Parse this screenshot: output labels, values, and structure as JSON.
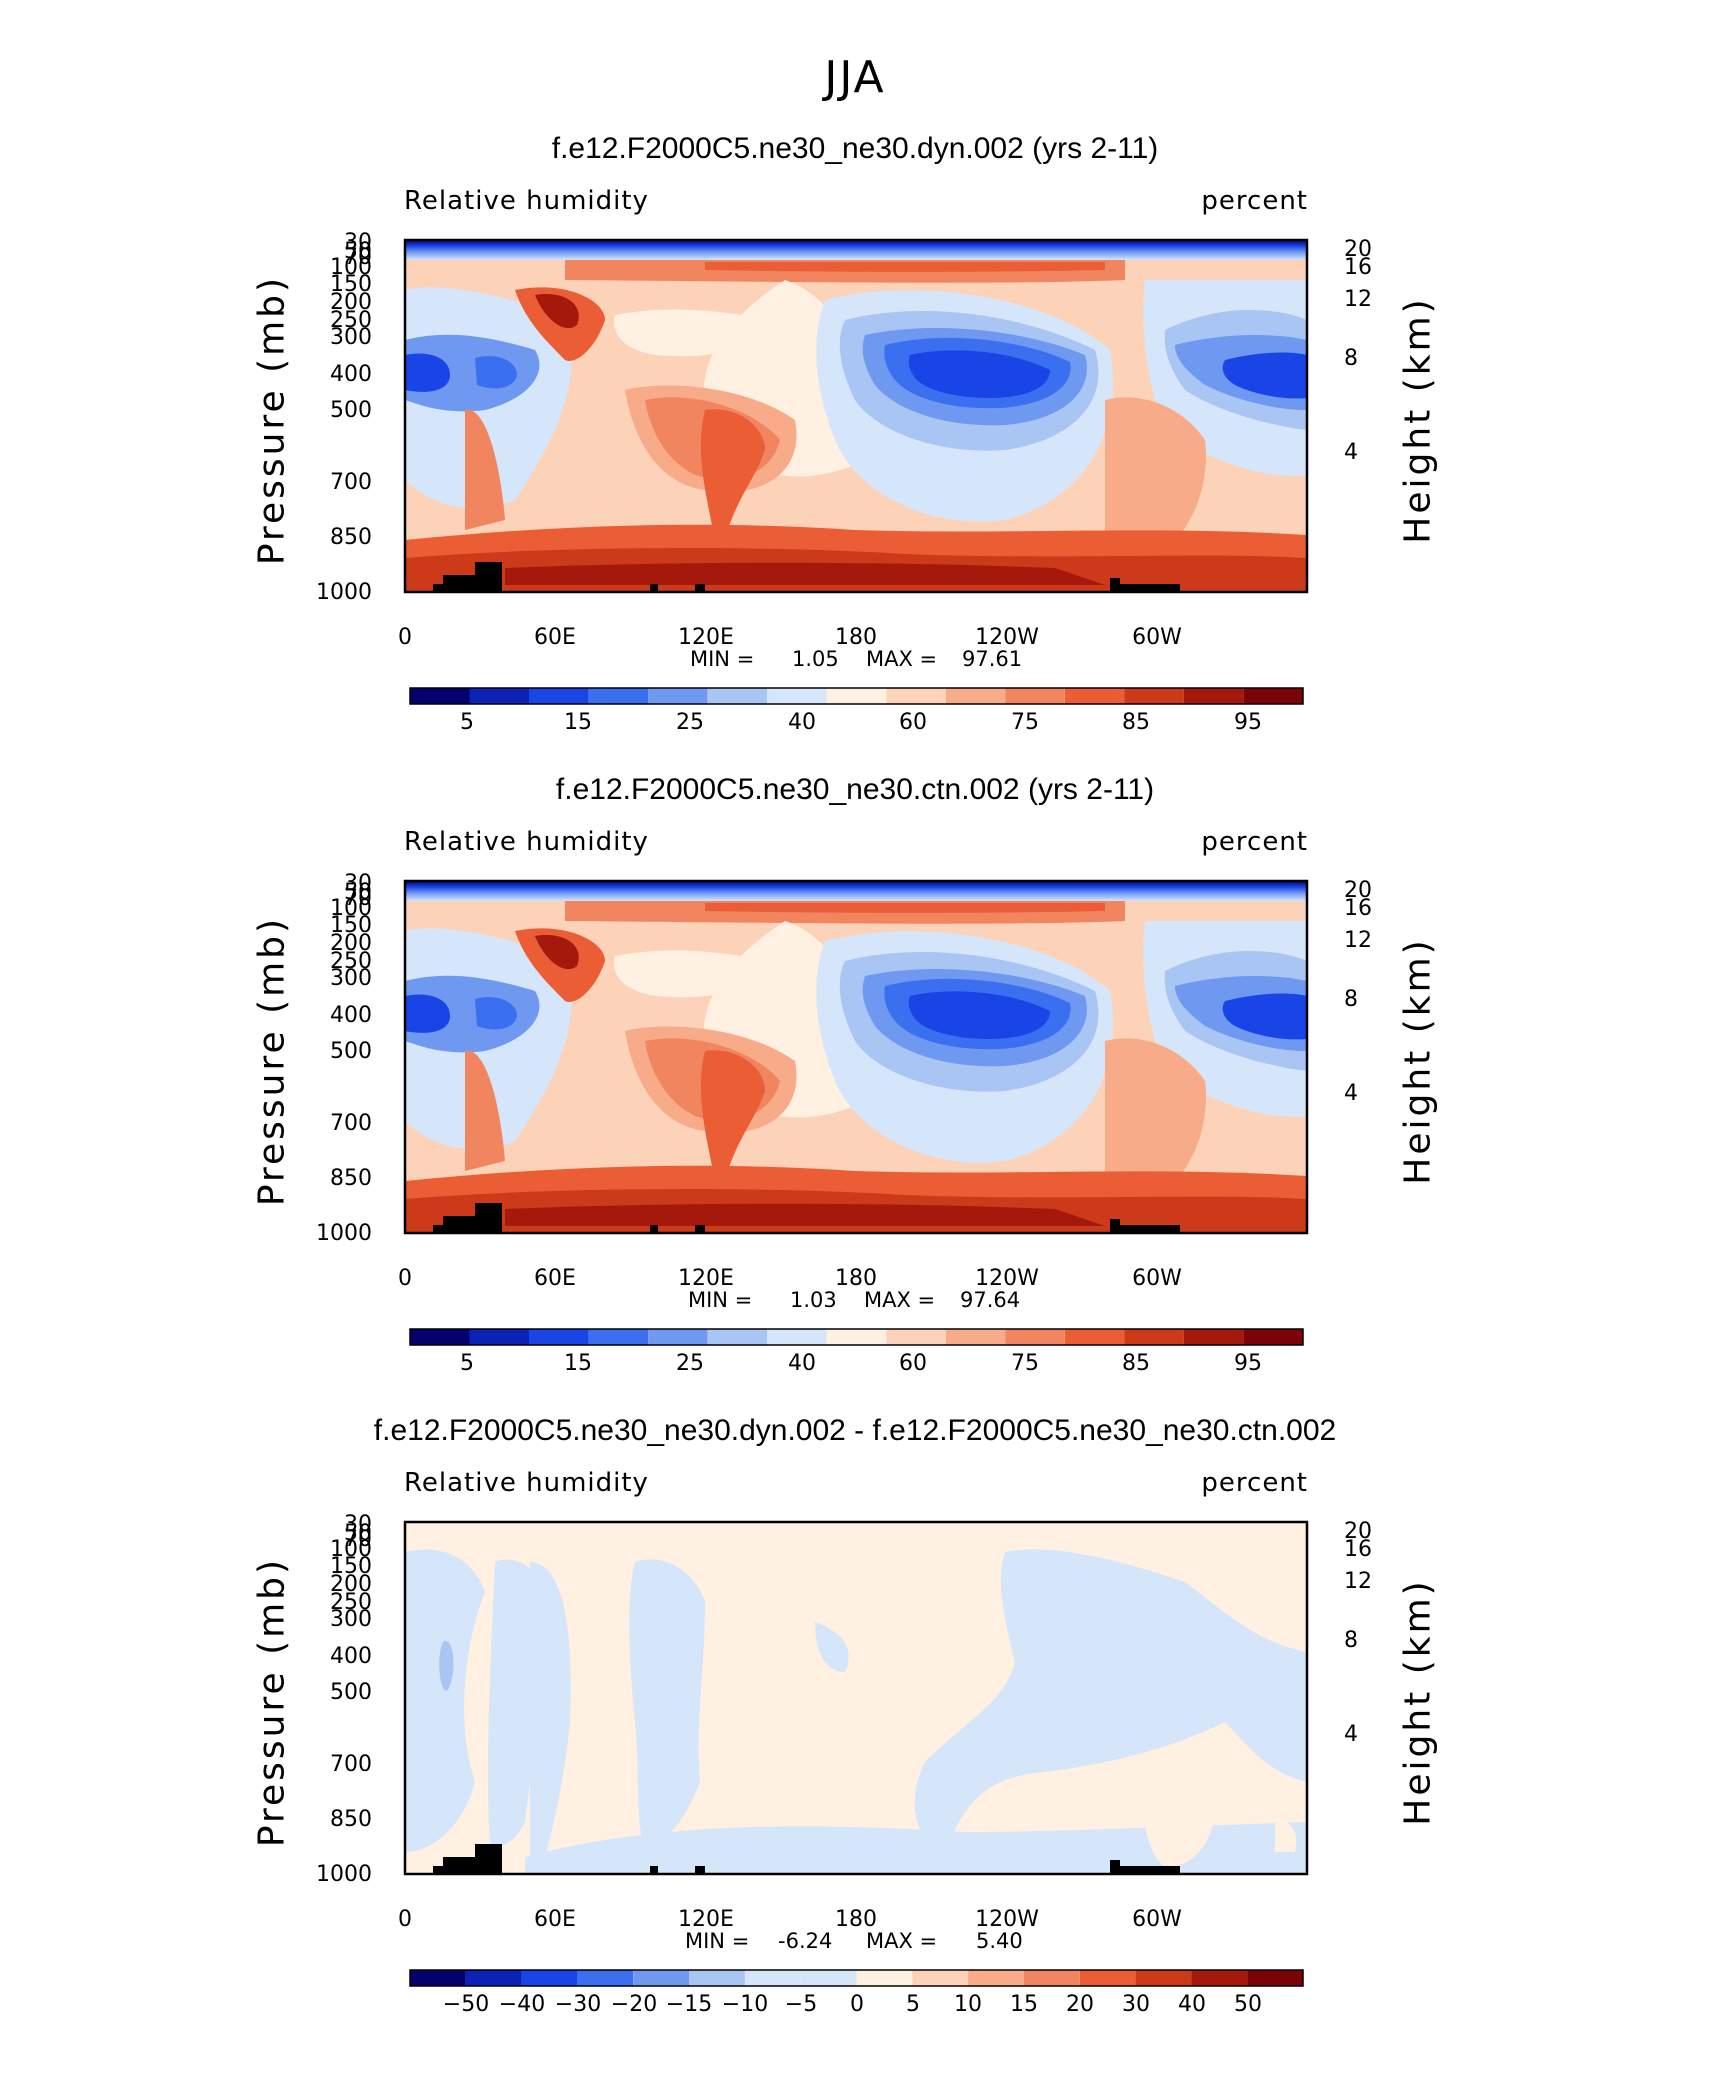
{
  "figure": {
    "title": "JJA",
    "variable": "Relative humidity",
    "units": "percent"
  },
  "chart_data": [
    {
      "type": "heatmap",
      "title": "f.e12.F2000C5.ne30_ne30.dyn.002 (yrs 2-11)",
      "left_label": "Relative humidity",
      "right_label": "percent",
      "ylabel": "Pressure (mb)",
      "ylabel_right": "Height (km)",
      "y_ticks": [
        "30",
        "50",
        "70",
        "100",
        "150",
        "200",
        "250",
        "300",
        "400",
        "500",
        "700",
        "850",
        "1000"
      ],
      "y_ticks_right": [
        "20",
        "16",
        "12",
        "8",
        "4"
      ],
      "x_ticks": [
        "0",
        "60E",
        "120E",
        "180",
        "120W",
        "60W"
      ],
      "min_label": "MIN =",
      "min_value": "1.05",
      "max_label": "MAX =",
      "max_value": "97.61",
      "colorbar_ticks": [
        "5",
        "15",
        "25",
        "40",
        "60",
        "75",
        "85",
        "95"
      ],
      "colorbar_colors": [
        "#04006e",
        "#0a22b5",
        "#1a45e6",
        "#3a6ff0",
        "#6f98f0",
        "#a9c5f3",
        "#d5e6fb",
        "#fff0e1",
        "#fcd3b8",
        "#f7ab88",
        "#f18560",
        "#eb5d34",
        "#cc3a1a",
        "#a4190c",
        "#790307"
      ]
    },
    {
      "type": "heatmap",
      "title": "f.e12.F2000C5.ne30_ne30.ctn.002 (yrs 2-11)",
      "left_label": "Relative humidity",
      "right_label": "percent",
      "ylabel": "Pressure (mb)",
      "ylabel_right": "Height (km)",
      "y_ticks": [
        "30",
        "50",
        "70",
        "100",
        "150",
        "200",
        "250",
        "300",
        "400",
        "500",
        "700",
        "850",
        "1000"
      ],
      "y_ticks_right": [
        "20",
        "16",
        "12",
        "8",
        "4"
      ],
      "x_ticks": [
        "0",
        "60E",
        "120E",
        "180",
        "120W",
        "60W"
      ],
      "min_label": "MIN =",
      "min_value": "1.03",
      "max_label": "MAX =",
      "max_value": "97.64",
      "colorbar_ticks": [
        "5",
        "15",
        "25",
        "40",
        "60",
        "75",
        "85",
        "95"
      ],
      "colorbar_colors": [
        "#04006e",
        "#0a22b5",
        "#1a45e6",
        "#3a6ff0",
        "#6f98f0",
        "#a9c5f3",
        "#d5e6fb",
        "#fff0e1",
        "#fcd3b8",
        "#f7ab88",
        "#f18560",
        "#eb5d34",
        "#cc3a1a",
        "#a4190c",
        "#790307"
      ]
    },
    {
      "type": "heatmap",
      "title": "f.e12.F2000C5.ne30_ne30.dyn.002 - f.e12.F2000C5.ne30_ne30.ctn.002",
      "left_label": "Relative humidity",
      "right_label": "percent",
      "ylabel": "Pressure (mb)",
      "ylabel_right": "Height (km)",
      "y_ticks": [
        "30",
        "50",
        "70",
        "100",
        "150",
        "200",
        "250",
        "300",
        "400",
        "500",
        "700",
        "850",
        "1000"
      ],
      "y_ticks_right": [
        "20",
        "16",
        "12",
        "8",
        "4"
      ],
      "x_ticks": [
        "0",
        "60E",
        "120E",
        "180",
        "120W",
        "60W"
      ],
      "min_label": "MIN =",
      "min_value": "-6.24",
      "max_label": "MAX =",
      "max_value": "5.40",
      "colorbar_ticks": [
        "−50",
        "−40",
        "−30",
        "−20",
        "−15",
        "−10",
        "−5",
        "0",
        "5",
        "10",
        "15",
        "20",
        "30",
        "40",
        "50"
      ],
      "colorbar_colors": [
        "#04006e",
        "#0a22b5",
        "#1a45e6",
        "#3a6ff0",
        "#6f98f0",
        "#a9c5f3",
        "#d5e6fb",
        "#d5e6fb",
        "#fff0e1",
        "#fcd3b8",
        "#f7ab88",
        "#f18560",
        "#eb5d34",
        "#cc3a1a",
        "#a4190c",
        "#790307"
      ]
    }
  ]
}
